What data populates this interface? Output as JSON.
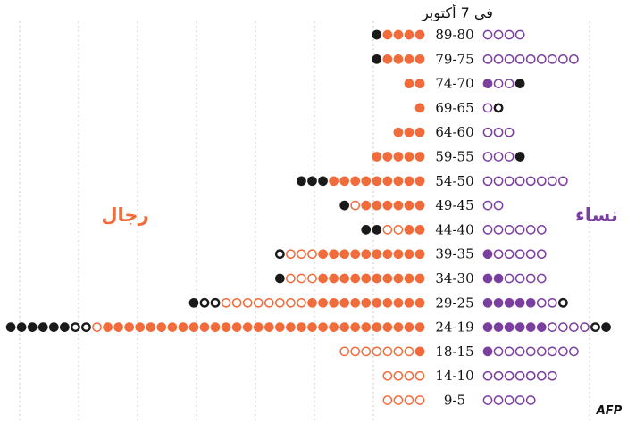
{
  "chart_data": {
    "type": "dot-pictogram",
    "title": "في 7 أكتوبر",
    "men_label": "رجال",
    "women_label": "نساء",
    "source_logo": "AFP",
    "colors": {
      "men_filled": "#f26b3a",
      "women_filled": "#7b3fa0",
      "black": "#1a1a1a",
      "grid": "#c8c8c8"
    },
    "dot_legend_codes": {
      "F": "filled colored dot",
      "O": "open colored dot",
      "K": "filled black dot",
      "B": "open black dot"
    },
    "rows": [
      {
        "age": "89-80",
        "men": "KFFFF",
        "women": "OOOO"
      },
      {
        "age": "79-75",
        "men": "KFFFF",
        "women": "OOOOOOOOO"
      },
      {
        "age": "74-70",
        "men": "FF",
        "women": "FOOK"
      },
      {
        "age": "69-65",
        "men": "F",
        "women": "OB"
      },
      {
        "age": "64-60",
        "men": "FFF",
        "women": "OOO"
      },
      {
        "age": "59-55",
        "men": "FFFFF",
        "women": "OOOK"
      },
      {
        "age": "54-50",
        "men": "KKKFFFFFFFFF",
        "women": "OOOOOOOO"
      },
      {
        "age": "49-45",
        "men": "KOFFFFFF",
        "women": "OO"
      },
      {
        "age": "44-40",
        "men": "KKOOFF",
        "women": "OOOOOO"
      },
      {
        "age": "39-35",
        "men": "BOOOFFFFFFFFFF",
        "women": "FOOOOO"
      },
      {
        "age": "34-30",
        "men": "KOOOFFFFFFFFFF",
        "women": "FFOOOO"
      },
      {
        "age": "29-25",
        "men": "KBBOOOOOOOOFFFFFFFFFFF",
        "women": "FFFFFOOB"
      },
      {
        "age": "24-19",
        "men": "KKKKKKBBOFFFFFFFFFFFFFFFFFFFFFFFFFFFFFF",
        "women": "FFFFFFOOOOBK"
      },
      {
        "age": "18-15",
        "men": "OOOOOOOF",
        "women": "FOOOOOOOO"
      },
      {
        "age": "14-10",
        "men": "OOOO",
        "women": "OOOOOOO"
      },
      {
        "age": "9-5",
        "men": "OOOO",
        "women": "OOOOO"
      }
    ]
  }
}
